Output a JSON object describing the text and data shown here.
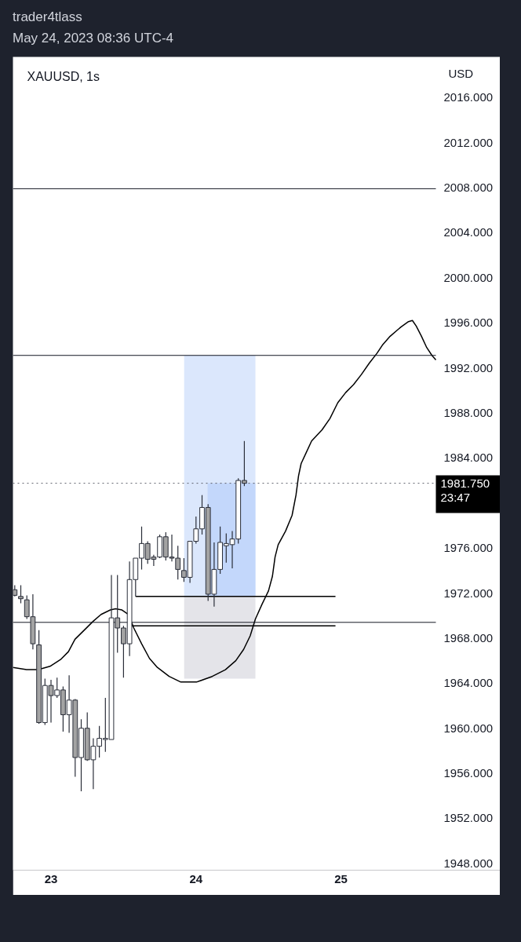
{
  "chart_data": {
    "type": "candlestick",
    "title": "XAUUSD, 1s",
    "subtitle": "trader4tlass\nMay 24, 2023 08:36 UTC-4",
    "ylabel": "USD",
    "x": [
      "2023-05-22T18:00",
      "2023-05-22T19:00",
      "2023-05-22T20:00",
      "2023-05-22T21:00",
      "2023-05-22T22:00",
      "2023-05-22T23:00",
      "2023-05-23T00:00",
      "2023-05-23T01:00",
      "2023-05-23T02:00",
      "2023-05-23T03:00",
      "2023-05-23T04:00",
      "2023-05-23T05:00",
      "2023-05-23T06:00",
      "2023-05-23T07:00",
      "2023-05-23T08:00",
      "2023-05-23T09:00",
      "2023-05-23T10:00",
      "2023-05-23T11:00",
      "2023-05-23T12:00",
      "2023-05-23T13:00",
      "2023-05-23T14:00",
      "2023-05-23T15:00",
      "2023-05-23T16:00",
      "2023-05-23T17:00",
      "2023-05-23T18:00",
      "2023-05-23T19:00",
      "2023-05-23T20:00",
      "2023-05-23T21:00",
      "2023-05-23T22:00",
      "2023-05-23T23:00",
      "2023-05-24T00:00",
      "2023-05-24T01:00",
      "2023-05-24T02:00",
      "2023-05-24T03:00",
      "2023-05-24T04:00",
      "2023-05-24T05:00",
      "2023-05-24T06:00",
      "2023-05-24T07:00",
      "2023-05-24T08:00"
    ],
    "ohlc": [
      [
        1972.3,
        1972.7,
        1971.7,
        1971.8
      ],
      [
        1971.7,
        1972.7,
        1971.1,
        1971.5
      ],
      [
        1971.4,
        1971.8,
        1969.7,
        1969.9
      ],
      [
        1969.9,
        1971.9,
        1967.0,
        1967.5
      ],
      [
        1967.4,
        1968.7,
        1960.4,
        1960.5
      ],
      [
        1960.5,
        1964.4,
        1960.3,
        1963.8
      ],
      [
        1963.8,
        1964.3,
        1960.5,
        1962.9
      ],
      [
        1962.9,
        1964.5,
        1962.7,
        1963.4
      ],
      [
        1963.4,
        1963.7,
        1959.7,
        1961.2
      ],
      [
        1961.2,
        1964.7,
        1959.6,
        1962.5
      ],
      [
        1962.5,
        1962.6,
        1955.7,
        1957.4
      ],
      [
        1957.4,
        1960.8,
        1954.4,
        1960.0
      ],
      [
        1960.0,
        1961.4,
        1957.1,
        1957.2
      ],
      [
        1957.2,
        1959.1,
        1954.6,
        1958.4
      ],
      [
        1958.4,
        1960.2,
        1957.4,
        1959.1
      ],
      [
        1959.0,
        1962.7,
        1957.9,
        1959.1
      ],
      [
        1959.0,
        1973.6,
        1959.0,
        1969.8
      ],
      [
        1969.8,
        1973.6,
        1966.7,
        1968.9
      ],
      [
        1968.9,
        1969.1,
        1964.5,
        1967.5
      ],
      [
        1967.5,
        1974.8,
        1966.4,
        1973.2
      ],
      [
        1973.2,
        1975.1,
        1971.7,
        1975.1
      ],
      [
        1975.1,
        1977.9,
        1974.1,
        1976.4
      ],
      [
        1976.4,
        1976.6,
        1974.6,
        1975.0
      ],
      [
        1975.2,
        1975.4,
        1974.4,
        1975.0
      ],
      [
        1975.2,
        1977.2,
        1975.1,
        1977.0
      ],
      [
        1977.0,
        1977.4,
        1974.9,
        1975.2
      ],
      [
        1975.2,
        1977.2,
        1974.8,
        1975.1
      ],
      [
        1975.1,
        1976.2,
        1973.2,
        1974.1
      ],
      [
        1974.0,
        1975.1,
        1973.0,
        1973.4
      ],
      [
        1973.4,
        1976.6,
        1972.9,
        1976.6
      ],
      [
        1976.6,
        1978.8,
        1976.4,
        1977.7
      ],
      [
        1977.7,
        1980.7,
        1977.2,
        1979.6
      ],
      [
        1979.6,
        1979.9,
        1971.3,
        1971.9
      ],
      [
        1971.9,
        1976.5,
        1970.8,
        1974.1
      ],
      [
        1974.1,
        1977.9,
        1973.7,
        1976.5
      ],
      [
        1976.2,
        1977.3,
        1974.7,
        1976.4
      ],
      [
        1976.3,
        1977.5,
        1974.2,
        1976.8
      ],
      [
        1976.8,
        1982.2,
        1976.4,
        1982.0
      ],
      [
        1982.0,
        1985.5,
        1981.5,
        1981.75
      ]
    ],
    "colors": [
      "#a3a3a3",
      "#a3a3a3",
      "#a3a3a3",
      "#a3a3a3",
      "#a3a3a3",
      "#ffffff",
      "#a3a3a3",
      "#ffffff",
      "#a3a3a3",
      "#ffffff",
      "#a3a3a3",
      "#ffffff",
      "#a3a3a3",
      "#ffffff",
      "#ffffff",
      "#ffffff",
      "#ffffff",
      "#a3a3a3",
      "#a3a3a3",
      "#ffffff",
      "#ffffff",
      "#ffffff",
      "#a3a3a3",
      "#a3a3a3",
      "#ffffff",
      "#a3a3a3",
      "#a3a3a3",
      "#a3a3a3",
      "#a3a3a3",
      "#ffffff",
      "#ffffff",
      "#ffffff",
      "#a3a3a3",
      "#ffffff",
      "#ffffff",
      "#ffffff",
      "#ffffff",
      "#ffffff",
      "#a3a3a3"
    ],
    "series": [
      {
        "type": "area",
        "color": "#dbe7fc",
        "x": [
          "2023-05-23T22:02",
          "2023-05-24T09:50"
        ],
        "values": [
          null,
          null
        ],
        "lower": [
          1971.7,
          1971.7
        ],
        "upper": [
          1993.1,
          1993.1
        ]
      },
      {
        "type": "area",
        "color": "#e4e4e9",
        "x": [
          "2023-05-23T22:02",
          "2023-05-24T09:50"
        ],
        "values": [
          null,
          null
        ],
        "lower": [
          1964.4,
          1964.4
        ],
        "upper": [
          1971.7,
          1971.7
        ]
      },
      {
        "type": "area",
        "color": "#c3d7fb",
        "x": [
          "2023-05-24T01:55",
          "2023-05-24T09:50"
        ],
        "values": [
          null,
          null
        ],
        "lower": [
          1971.7,
          1971.7
        ],
        "upper": [
          1981.75,
          1981.75
        ]
      },
      {
        "type": "line",
        "color": "#000000",
        "x": [
          "2023-05-23T14:00",
          "2023-05-24T23:05"
        ],
        "values": [
          1971.7,
          1971.7
        ]
      },
      {
        "type": "line",
        "color": "#000000",
        "x": [
          "2023-05-23T13:03",
          "2023-05-24T23:05"
        ],
        "values": [
          1969.1,
          1969.1
        ]
      },
      {
        "type": "line",
        "color": "#000000",
        "x": [
          "2023-05-22T17:42",
          "2023-05-22T19:57",
          "2023-05-22T21:54",
          "2023-05-22T23:50",
          "2023-05-23T01:35",
          "2023-05-23T02:53",
          "2023-05-23T03:58",
          "2023-05-23T05:29",
          "2023-05-23T06:59",
          "2023-05-23T08:17",
          "2023-05-23T09:49",
          "2023-05-23T10:41",
          "2023-05-23T11:45",
          "2023-05-23T12:50",
          "2023-05-23T13:42",
          "2023-05-23T15:00",
          "2023-05-23T16:18",
          "2023-05-23T17:36",
          "2023-05-23T19:33",
          "2023-05-23T21:29",
          "2023-05-24T00:05",
          "2023-05-24T02:41",
          "2023-05-24T04:52",
          "2023-05-24T06:35",
          "2023-05-24T07:53",
          "2023-05-24T08:58",
          "2023-05-24T09:50",
          "2023-05-24T10:55",
          "2023-05-24T12:00",
          "2023-05-24T12:39",
          "2023-05-24T13:05",
          "2023-05-24T13:36",
          "2023-05-24T14:49",
          "2023-05-24T15:54",
          "2023-05-24T16:33",
          "2023-05-24T16:58",
          "2023-05-24T17:24",
          "2023-05-24T18:16",
          "2023-05-24T19:08",
          "2023-05-24T20:52",
          "2023-05-24T22:10",
          "2023-05-24T23:28",
          "2023-05-25T00:46",
          "2023-05-25T02:04",
          "2023-05-25T03:22",
          "2023-05-25T04:40",
          "2023-05-25T05:58",
          "2023-05-25T06:50",
          "2023-05-25T08:08",
          "2023-05-25T09:52",
          "2023-05-25T11:10",
          "2023-05-25T11:49",
          "2023-05-25T12:27",
          "2023-05-25T13:19",
          "2023-05-25T14:11",
          "2023-05-25T15:03",
          "2023-05-25T15:42"
        ],
        "values": [
          1965.4,
          1965.2,
          1965.2,
          1965.5,
          1966.1,
          1966.8,
          1967.9,
          1968.7,
          1969.5,
          1970.1,
          1970.5,
          1970.6,
          1970.5,
          1970.1,
          1968.9,
          1967.5,
          1966.2,
          1965.4,
          1964.6,
          1964.1,
          1964.1,
          1964.6,
          1965.2,
          1966.0,
          1967.0,
          1968.2,
          1969.7,
          1971.0,
          1972.2,
          1973.5,
          1975.2,
          1976.3,
          1977.5,
          1978.9,
          1980.7,
          1982.4,
          1983.5,
          1984.5,
          1985.5,
          1986.5,
          1987.5,
          1988.9,
          1989.8,
          1990.5,
          1991.4,
          1992.4,
          1993.3,
          1994.0,
          1994.8,
          1995.6,
          1996.1,
          1996.2,
          1995.7,
          1994.8,
          1993.8,
          1993.1,
          1992.7
        ]
      }
    ],
    "ref_lines": [
      {
        "axis": "y",
        "value": 2007.9,
        "color": "#131722"
      },
      {
        "axis": "y",
        "value": 1993.1,
        "color": "#131722"
      },
      {
        "axis": "y",
        "value": 1969.4,
        "color": "#131722"
      },
      {
        "axis": "y",
        "value": 1981.75,
        "label": "1981.750\n23:47",
        "color": "#5d606b",
        "line_style": "dotted"
      }
    ],
    "xlim": [
      "2023-05-22T17:42",
      "2023-05-25T15:42"
    ],
    "xticks": [
      {
        "value": "2023-05-23",
        "label": "23"
      },
      {
        "value": "2023-05-24",
        "label": "24"
      },
      {
        "value": "2023-05-25",
        "label": "25"
      }
    ],
    "ylim": [
      1947.4,
      2019.6
    ],
    "yticks": [
      {
        "value": 1948,
        "label": "1948.000"
      },
      {
        "value": 1952,
        "label": "1952.000"
      },
      {
        "value": 1956,
        "label": "1956.000"
      },
      {
        "value": 1960,
        "label": "1960.000"
      },
      {
        "value": 1964,
        "label": "1964.000"
      },
      {
        "value": 1968,
        "label": "1968.000"
      },
      {
        "value": 1972,
        "label": "1972.000"
      },
      {
        "value": 1976,
        "label": "1976.000"
      },
      {
        "value": 1984,
        "label": "1984.000"
      },
      {
        "value": 1988,
        "label": "1988.000"
      },
      {
        "value": 1992,
        "label": "1992.000"
      },
      {
        "value": 1996,
        "label": "1996.000"
      },
      {
        "value": 2000,
        "label": "2000.000"
      },
      {
        "value": 2004,
        "label": "2004.000"
      },
      {
        "value": 2008,
        "label": "2008.000"
      },
      {
        "value": 2012,
        "label": "2012.000"
      },
      {
        "value": 2016,
        "label": "2016.000"
      }
    ],
    "grid": false
  }
}
